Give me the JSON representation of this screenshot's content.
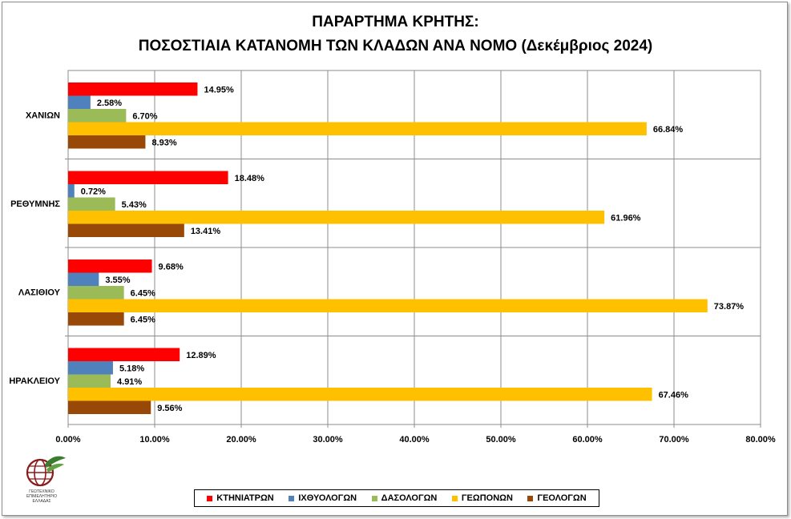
{
  "title_line1": "ΠΑΡΑΡΤΗΜΑ ΚΡΗΤΗΣ:",
  "title_line2": "ΠΟΣΟΣΤΙΑΙΑ ΚΑΤΑΝΟΜΗ ΤΩΝ ΚΛΑΔΩΝ ΑΝΑ ΝΟΜΟ (Δεκέμβριος 2024)",
  "logo": {
    "icon": "geotechnical-chamber-logo",
    "text_lines": [
      "ΓΕΩΤΕΧΝΙΚΟ",
      "ΕΠΙΜΕΛΗΤΗΡΙΟ",
      "ΕΛΛΑΔΑΣ"
    ]
  },
  "chart_data": {
    "type": "bar",
    "orientation": "horizontal",
    "categories": [
      "ΧΑΝΙΩΝ",
      "ΡΕΘΥΜΝΗΣ",
      "ΛΑΣΙΘΙΟΥ",
      "ΗΡΑΚΛΕΙΟΥ"
    ],
    "series": [
      {
        "name": "ΚΤΗΝΙΑΤΡΩΝ",
        "color": "#ff0000",
        "values": [
          14.95,
          18.48,
          9.68,
          12.89
        ],
        "labels": [
          "14.95%",
          "18.48%",
          "9.68%",
          "12.89%"
        ]
      },
      {
        "name": "ΙΧΘΥΟΛΟΓΩΝ",
        "color": "#4f81bd",
        "values": [
          2.58,
          0.72,
          3.55,
          5.18
        ],
        "labels": [
          "2.58%",
          "0.72%",
          "3.55%",
          "5.18%"
        ]
      },
      {
        "name": "ΔΑΣΟΛΟΓΩΝ",
        "color": "#9bbb59",
        "values": [
          6.7,
          5.43,
          6.45,
          4.91
        ],
        "labels": [
          "6.70%",
          "5.43%",
          "6.45%",
          "4.91%"
        ]
      },
      {
        "name": "ΓΕΩΠΟΝΩΝ",
        "color": "#ffc000",
        "values": [
          66.84,
          61.96,
          73.87,
          67.46
        ],
        "labels": [
          "66.84%",
          "61.96%",
          "73.87%",
          "67.46%"
        ]
      },
      {
        "name": "ΓΕΟΛΟΓΩΝ",
        "color": "#984807",
        "values": [
          8.93,
          13.41,
          6.45,
          9.56
        ],
        "labels": [
          "8.93%",
          "13.41%",
          "6.45%",
          "9.56%"
        ]
      }
    ],
    "xlim": [
      0,
      80
    ],
    "x_ticks": [
      0,
      10,
      20,
      30,
      40,
      50,
      60,
      70,
      80
    ],
    "x_tick_labels": [
      "0.00%",
      "10.00%",
      "20.00%",
      "30.00%",
      "40.00%",
      "50.00%",
      "60.00%",
      "70.00%",
      "80.00%"
    ],
    "grid": true,
    "legend_position": "bottom"
  }
}
